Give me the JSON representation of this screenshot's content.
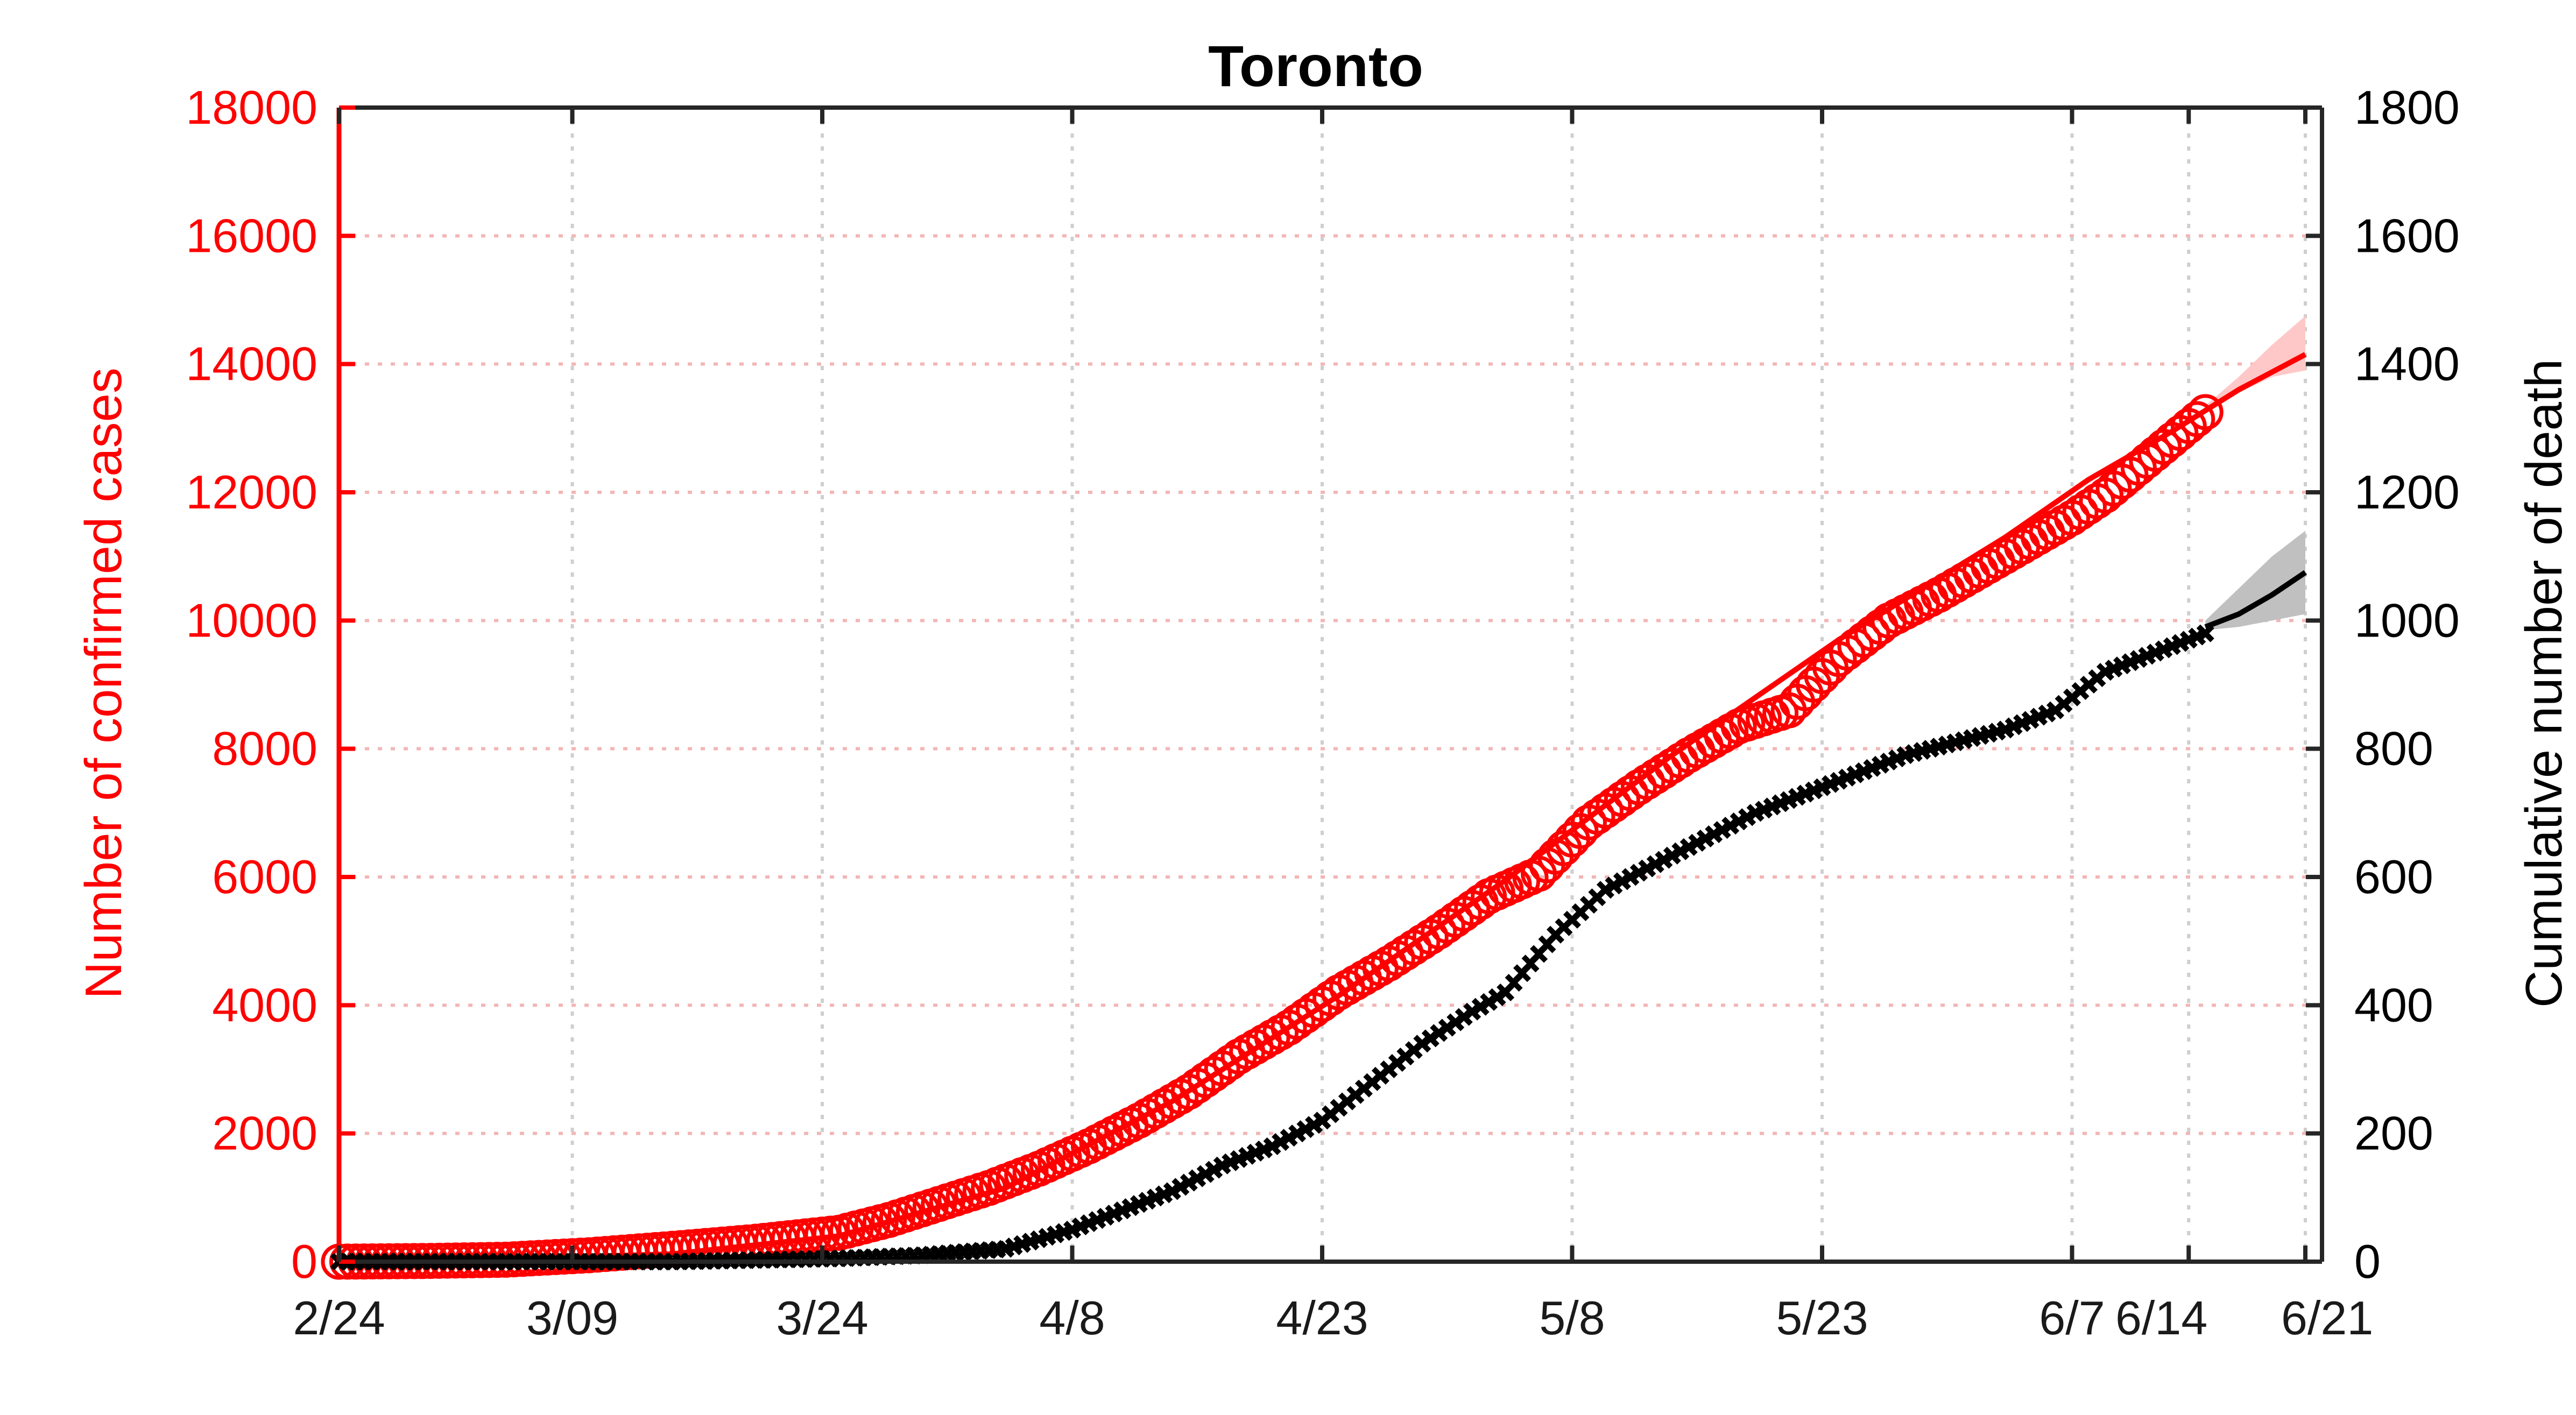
{
  "chart_data": {
    "type": "line",
    "title": "Toronto",
    "xlabel": "",
    "x_ticks": [
      "2/24",
      "3/09",
      "3/24",
      "4/8",
      "4/23",
      "5/8",
      "5/23",
      "6/7",
      "6/14",
      "6/21"
    ],
    "x_tick_days": [
      0,
      14,
      29,
      44,
      59,
      74,
      89,
      104,
      111,
      118
    ],
    "x_range_days": [
      0,
      119
    ],
    "y_left": {
      "label": "Number of confirmed cases",
      "ylim": [
        0,
        18000
      ],
      "ticks": [
        "0",
        "2000",
        "4000",
        "6000",
        "8000",
        "10000",
        "12000",
        "14000",
        "16000",
        "18000"
      ],
      "color": "#ff0000"
    },
    "y_right": {
      "label": "Cumulative number of death",
      "ylim": [
        0,
        1800
      ],
      "ticks": [
        "0",
        "200",
        "400",
        "600",
        "800",
        "1000",
        "1200",
        "1400",
        "1600",
        "1800"
      ],
      "color": "#000000"
    },
    "grid": true,
    "series": [
      {
        "axis": "left",
        "marker": "circle",
        "color": "#ff0000",
        "x": [
          0,
          5,
          10,
          15,
          20,
          25,
          30,
          33,
          36,
          39,
          42,
          45,
          48,
          51,
          54,
          57,
          60,
          63,
          66,
          69,
          72,
          75,
          78,
          81,
          84,
          87,
          90,
          93,
          96,
          99,
          102,
          104,
          106,
          109,
          112
        ],
        "y": [
          0,
          10,
          30,
          100,
          200,
          310,
          450,
          650,
          900,
          1150,
          1450,
          1800,
          2200,
          2650,
          3200,
          3650,
          4200,
          4650,
          5150,
          5700,
          6050,
          6850,
          7400,
          7900,
          8350,
          8600,
          9400,
          10000,
          10400,
          10850,
          11300,
          11600,
          11950,
          12600,
          13250
        ]
      },
      {
        "axis": "right",
        "marker": "cross",
        "color": "#000000",
        "x": [
          0,
          10,
          20,
          30,
          35,
          40,
          44,
          47,
          50,
          53,
          56,
          59,
          62,
          65,
          68,
          70,
          73,
          76,
          79,
          82,
          85,
          88,
          91,
          94,
          97,
          100,
          103,
          104,
          106,
          109,
          112
        ],
        "y": [
          0,
          0,
          0,
          5,
          10,
          20,
          50,
          80,
          110,
          150,
          180,
          220,
          280,
          340,
          390,
          420,
          510,
          580,
          620,
          660,
          700,
          730,
          760,
          790,
          810,
          830,
          860,
          880,
          920,
          950,
          980
        ]
      },
      {
        "axis": "left",
        "type": "fit",
        "color": "#ff0000",
        "x": [
          0,
          10,
          20,
          30,
          40,
          50,
          60,
          70,
          80,
          90,
          100,
          105,
          110,
          114,
          118
        ],
        "y": [
          0,
          40,
          120,
          400,
          1150,
          2500,
          4150,
          5950,
          7900,
          9700,
          11300,
          12200,
          12950,
          13600,
          14150
        ]
      },
      {
        "axis": "left",
        "type": "band",
        "color": "#ffc8c8",
        "x": [
          112,
          114,
          116,
          118
        ],
        "upper": [
          13350,
          13800,
          14300,
          14750
        ],
        "lower": [
          13250,
          13550,
          13800,
          13900
        ]
      },
      {
        "axis": "right",
        "type": "fit",
        "color": "#000000",
        "x": [
          112,
          114,
          116,
          118
        ],
        "y": [
          990,
          1010,
          1040,
          1075
        ]
      },
      {
        "axis": "right",
        "type": "band",
        "color": "#c0c0c0",
        "x": [
          112,
          114,
          116,
          118
        ],
        "upper": [
          1000,
          1050,
          1100,
          1140
        ],
        "lower": [
          985,
          990,
          1000,
          1010
        ]
      }
    ]
  }
}
